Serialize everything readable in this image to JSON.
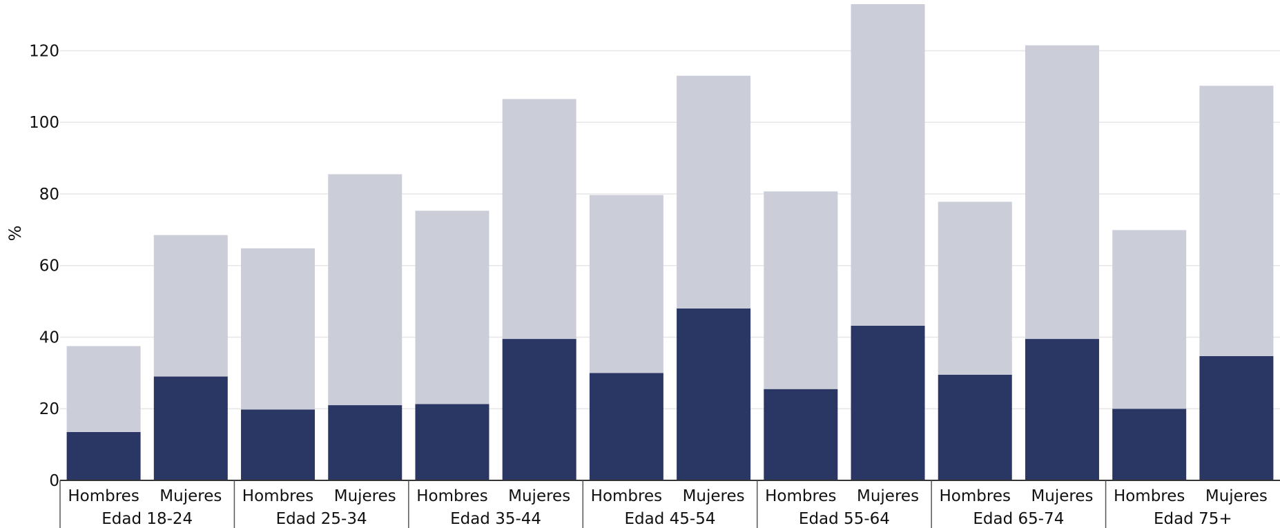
{
  "chart_data": {
    "type": "bar",
    "stacked": true,
    "ylabel": "%",
    "ylim": [
      0,
      133
    ],
    "yticks": [
      0,
      20,
      40,
      60,
      80,
      100,
      120
    ],
    "grid": true,
    "groups": [
      "Edad 18-24",
      "Edad 25-34",
      "Edad 35-44",
      "Edad 45-54",
      "Edad 55-64",
      "Edad 65-74",
      "Edad 75+"
    ],
    "subcategories": [
      "Hombres",
      "Mujeres"
    ],
    "series": [
      {
        "values": [
          13.5,
          29,
          19.8,
          21,
          21.3,
          39.5,
          30,
          48,
          25.5,
          43.2,
          29.5,
          39.5,
          20,
          34.7
        ]
      },
      {
        "values": [
          24,
          39.5,
          45,
          64.5,
          54,
          67,
          49.7,
          65,
          55.2,
          89.8,
          48.3,
          82,
          49.9,
          75.5
        ]
      }
    ],
    "totals": [
      37.5,
      68.5,
      64.8,
      85.5,
      75.3,
      106.5,
      79.7,
      113,
      80.7,
      133,
      77.8,
      121.5,
      69.9,
      110.2
    ],
    "colors": {
      "series1": "#2a3663",
      "series2": "#cbcdd9"
    }
  }
}
